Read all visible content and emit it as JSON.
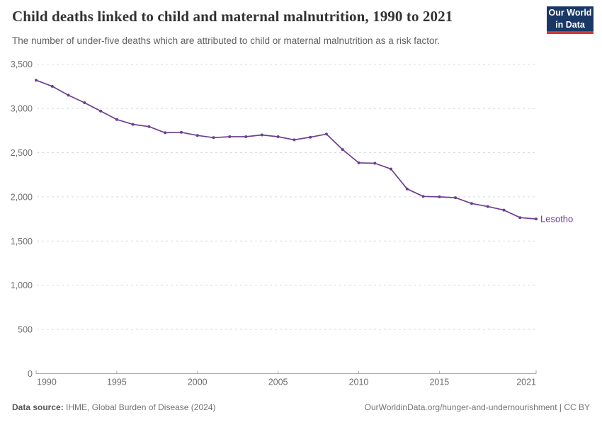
{
  "header": {
    "title": "Child deaths linked to child and maternal malnutrition, 1990 to 2021",
    "subtitle": "The number of under-five deaths which are attributed to child or maternal malnutrition as a risk factor.",
    "logo_line1": "Our World",
    "logo_line2": "in Data"
  },
  "chart_data": {
    "type": "line",
    "title": "Child deaths linked to child and maternal malnutrition, 1990 to 2021",
    "xlabel": "",
    "ylabel": "",
    "xlim": [
      1990,
      2021
    ],
    "ylim": [
      0,
      3500
    ],
    "x_ticks": [
      1990,
      1995,
      2000,
      2005,
      2010,
      2015,
      2021
    ],
    "y_ticks": [
      0,
      500,
      1000,
      1500,
      2000,
      2500,
      3000,
      3500
    ],
    "grid": "horizontal-dashed",
    "legend_position": "end-of-line-label",
    "x": [
      1990,
      1991,
      1992,
      1993,
      1994,
      1995,
      1996,
      1997,
      1998,
      1999,
      2000,
      2001,
      2002,
      2003,
      2004,
      2005,
      2006,
      2007,
      2008,
      2009,
      2010,
      2011,
      2012,
      2013,
      2014,
      2015,
      2016,
      2017,
      2018,
      2019,
      2020,
      2021
    ],
    "series": [
      {
        "name": "Lesotho",
        "color": "#6D3E91",
        "values": [
          3320,
          3250,
          3150,
          3065,
          2970,
          2875,
          2820,
          2795,
          2725,
          2730,
          2695,
          2670,
          2680,
          2680,
          2700,
          2680,
          2645,
          2675,
          2710,
          2535,
          2385,
          2380,
          2315,
          2090,
          2005,
          2000,
          1990,
          1925,
          1890,
          1850,
          1765,
          1750
        ]
      }
    ]
  },
  "footer": {
    "source_label": "Data source:",
    "source_text": "IHME, Global Burden of Disease (2024)",
    "credit": "OurWorldinData.org/hunger-and-undernourishment | CC BY"
  },
  "colors": {
    "series_purple": "#6D3E91",
    "gridline": "#d9d9d9",
    "axis": "#a8a8a8",
    "tick_label": "#6e6e6e",
    "logo_bg": "#1a3866",
    "logo_stripe": "#d4382f"
  }
}
